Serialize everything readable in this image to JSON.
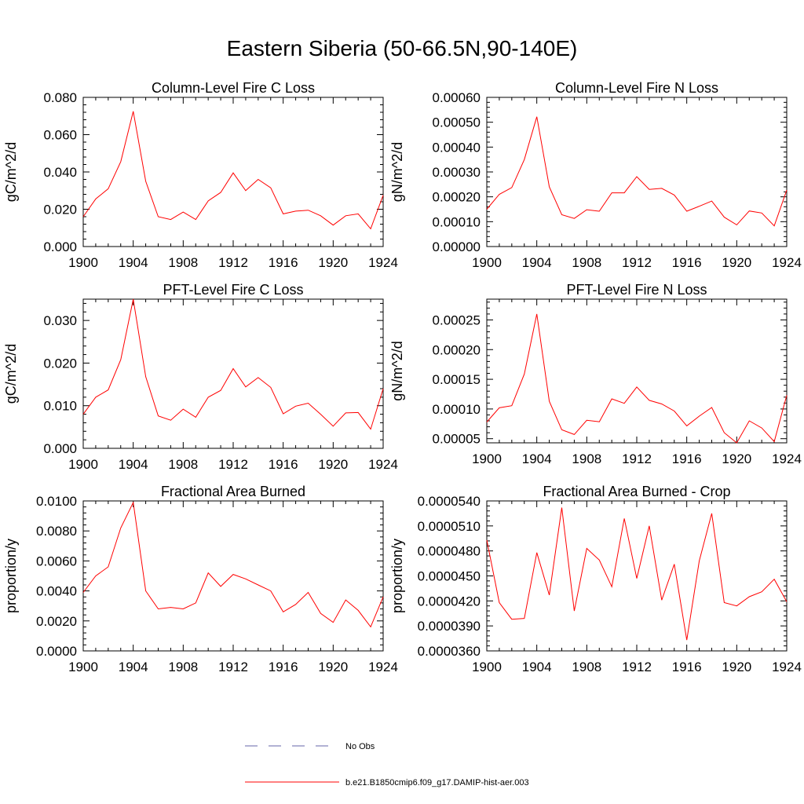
{
  "title": "Eastern Siberia (50-66.5N,90-140E)",
  "colors": {
    "model": "#ff0000",
    "obs": "#6666aa",
    "axis": "#000000"
  },
  "legend": [
    {
      "label": "No Obs",
      "style": "dashed",
      "color": "#6666aa"
    },
    {
      "label": "b.e21.B1850cmip6.f09_g17.DAMIP-hist-aer.003",
      "style": "solid",
      "color": "#ff0000"
    }
  ],
  "chart_data": [
    {
      "type": "line",
      "title": "Column-Level Fire C Loss",
      "ylabel": "gC/m^2/d",
      "xlim": [
        1900,
        1924
      ],
      "ylim": [
        0,
        0.08
      ],
      "xticks": [
        1900,
        1904,
        1908,
        1912,
        1916,
        1920,
        1924
      ],
      "yticks": [
        0.0,
        0.02,
        0.04,
        0.06,
        0.08
      ],
      "ytick_labels": [
        "0.000",
        "0.020",
        "0.040",
        "0.060",
        "0.080"
      ],
      "x": [
        1900,
        1901,
        1902,
        1903,
        1904,
        1905,
        1906,
        1907,
        1908,
        1909,
        1910,
        1911,
        1912,
        1913,
        1914,
        1915,
        1916,
        1917,
        1918,
        1919,
        1920,
        1921,
        1922,
        1923,
        1924
      ],
      "series": [
        {
          "name": "b.e21.B1850cmip6.f09_g17.DAMIP-hist-aer.003",
          "values": [
            0.016,
            0.0255,
            0.031,
            0.0455,
            0.0725,
            0.035,
            0.016,
            0.0145,
            0.0185,
            0.0145,
            0.0245,
            0.029,
            0.0395,
            0.03,
            0.036,
            0.0315,
            0.0175,
            0.019,
            0.0195,
            0.0165,
            0.0115,
            0.0165,
            0.0175,
            0.0095,
            0.0275
          ]
        }
      ]
    },
    {
      "type": "line",
      "title": "Column-Level Fire N Loss",
      "ylabel": "gN/m^2/d",
      "xlim": [
        1900,
        1924
      ],
      "ylim": [
        0,
        0.0006
      ],
      "xticks": [
        1900,
        1904,
        1908,
        1912,
        1916,
        1920,
        1924
      ],
      "yticks": [
        0,
        0.0001,
        0.0002,
        0.0003,
        0.0004,
        0.0005,
        0.0006
      ],
      "ytick_labels": [
        "0.00000",
        "0.00010",
        "0.00020",
        "0.00030",
        "0.00040",
        "0.00050",
        "0.00060"
      ],
      "x": [
        1900,
        1901,
        1902,
        1903,
        1904,
        1905,
        1906,
        1907,
        1908,
        1909,
        1910,
        1911,
        1912,
        1913,
        1914,
        1915,
        1916,
        1917,
        1918,
        1919,
        1920,
        1921,
        1922,
        1923,
        1924
      ],
      "series": [
        {
          "name": "b.e21.B1850cmip6.f09_g17.DAMIP-hist-aer.003",
          "values": [
            0.00015,
            0.00021,
            0.000237,
            0.00035,
            0.000522,
            0.00024,
            0.000128,
            0.000113,
            0.000148,
            0.000142,
            0.000216,
            0.000216,
            0.000281,
            0.00023,
            0.000234,
            0.000207,
            0.000142,
            0.000162,
            0.000183,
            0.000118,
            8.7e-05,
            0.000143,
            0.000135,
            8.3e-05,
            0.000227
          ]
        }
      ]
    },
    {
      "type": "line",
      "title": "PFT-Level Fire C Loss",
      "ylabel": "gC/m^2/d",
      "xlim": [
        1900,
        1924
      ],
      "ylim": [
        0,
        0.035
      ],
      "xticks": [
        1900,
        1904,
        1908,
        1912,
        1916,
        1920,
        1924
      ],
      "yticks": [
        0.0,
        0.01,
        0.02,
        0.03
      ],
      "ytick_labels": [
        "0.000",
        "0.010",
        "0.020",
        "0.030"
      ],
      "x": [
        1900,
        1901,
        1902,
        1903,
        1904,
        1905,
        1906,
        1907,
        1908,
        1909,
        1910,
        1911,
        1912,
        1913,
        1914,
        1915,
        1916,
        1917,
        1918,
        1919,
        1920,
        1921,
        1922,
        1923,
        1924
      ],
      "series": [
        {
          "name": "b.e21.B1850cmip6.f09_g17.DAMIP-hist-aer.003",
          "values": [
            0.008,
            0.012,
            0.0137,
            0.0208,
            0.035,
            0.0168,
            0.0076,
            0.0066,
            0.0092,
            0.0073,
            0.012,
            0.0136,
            0.0187,
            0.0144,
            0.0166,
            0.0143,
            0.0081,
            0.0099,
            0.0106,
            0.008,
            0.0052,
            0.0083,
            0.0084,
            0.0045,
            0.014
          ]
        }
      ]
    },
    {
      "type": "line",
      "title": "PFT-Level Fire N Loss",
      "ylabel": "gN/m^2/d",
      "xlim": [
        1900,
        1924
      ],
      "ylim": [
        4.3e-05,
        0.000285
      ],
      "xticks": [
        1900,
        1904,
        1908,
        1912,
        1916,
        1920,
        1924
      ],
      "yticks": [
        5e-05,
        0.0001,
        0.00015,
        0.0002,
        0.00025
      ],
      "ytick_labels": [
        "0.00005",
        "0.00010",
        "0.00015",
        "0.00020",
        "0.00025"
      ],
      "x": [
        1900,
        1901,
        1902,
        1903,
        1904,
        1905,
        1906,
        1907,
        1908,
        1909,
        1910,
        1911,
        1912,
        1913,
        1914,
        1915,
        1916,
        1917,
        1918,
        1919,
        1920,
        1921,
        1922,
        1923,
        1924
      ],
      "series": [
        {
          "name": "b.e21.B1850cmip6.f09_g17.DAMIP-hist-aer.003",
          "values": [
            7.8e-05,
            0.000102,
            0.0001055,
            0.000159,
            0.00026,
            0.000113,
            6.5e-05,
            5.7e-05,
            8.1e-05,
            7.85e-05,
            0.000117,
            0.0001095,
            0.000137,
            0.0001145,
            0.0001085,
            9.65e-05,
            7.15e-05,
            8.8e-05,
            0.0001025,
            6e-05,
            4.3e-05,
            8e-05,
            6.8e-05,
            4.5e-05,
            0.000123
          ]
        }
      ]
    },
    {
      "type": "line",
      "title": "Fractional Area Burned",
      "ylabel": "proportion/y",
      "xlim": [
        1900,
        1924
      ],
      "ylim": [
        0,
        0.01
      ],
      "xticks": [
        1900,
        1904,
        1908,
        1912,
        1916,
        1920,
        1924
      ],
      "yticks": [
        0.0,
        0.002,
        0.004,
        0.006,
        0.008,
        0.01
      ],
      "ytick_labels": [
        "0.0000",
        "0.0020",
        "0.0040",
        "0.0060",
        "0.0080",
        "0.0100"
      ],
      "x": [
        1900,
        1901,
        1902,
        1903,
        1904,
        1905,
        1906,
        1907,
        1908,
        1909,
        1910,
        1911,
        1912,
        1913,
        1914,
        1915,
        1916,
        1917,
        1918,
        1919,
        1920,
        1921,
        1922,
        1923,
        1924
      ],
      "series": [
        {
          "name": "b.e21.B1850cmip6.f09_g17.DAMIP-hist-aer.003",
          "values": [
            0.0039,
            0.005,
            0.0056,
            0.0082,
            0.0099,
            0.004,
            0.0028,
            0.0029,
            0.0028,
            0.0032,
            0.0052,
            0.0043,
            0.0051,
            0.0048,
            0.0044,
            0.004,
            0.0026,
            0.0031,
            0.0039,
            0.0025,
            0.0019,
            0.0034,
            0.0027,
            0.0016,
            0.0036
          ]
        }
      ]
    },
    {
      "type": "line",
      "title": "Fractional Area Burned - Crop",
      "ylabel": "proportion/y",
      "xlim": [
        1900,
        1924
      ],
      "ylim": [
        3.6e-05,
        5.4e-05
      ],
      "xticks": [
        1900,
        1904,
        1908,
        1912,
        1916,
        1920,
        1924
      ],
      "yticks": [
        3.6e-05,
        3.9e-05,
        4.2e-05,
        4.5e-05,
        4.8e-05,
        5.1e-05,
        5.4e-05
      ],
      "ytick_labels": [
        "0.0000360",
        "0.0000390",
        "0.0000420",
        "0.0000450",
        "0.0000480",
        "0.0000510",
        "0.0000540"
      ],
      "x": [
        1900,
        1901,
        1902,
        1903,
        1904,
        1905,
        1906,
        1907,
        1908,
        1909,
        1910,
        1911,
        1912,
        1913,
        1914,
        1915,
        1916,
        1917,
        1918,
        1919,
        1920,
        1921,
        1922,
        1923,
        1924
      ],
      "series": [
        {
          "name": "b.e21.B1850cmip6.f09_g17.DAMIP-hist-aer.003",
          "values": [
            4.93e-05,
            4.18e-05,
            3.98e-05,
            3.99e-05,
            4.78e-05,
            4.27e-05,
            5.32e-05,
            4.08e-05,
            4.83e-05,
            4.69e-05,
            4.37e-05,
            5.19e-05,
            4.47e-05,
            5.1e-05,
            4.21e-05,
            4.64e-05,
            3.73e-05,
            4.68e-05,
            5.25e-05,
            4.18e-05,
            4.14e-05,
            4.25e-05,
            4.31e-05,
            4.46e-05,
            4.19e-05
          ]
        }
      ]
    }
  ]
}
